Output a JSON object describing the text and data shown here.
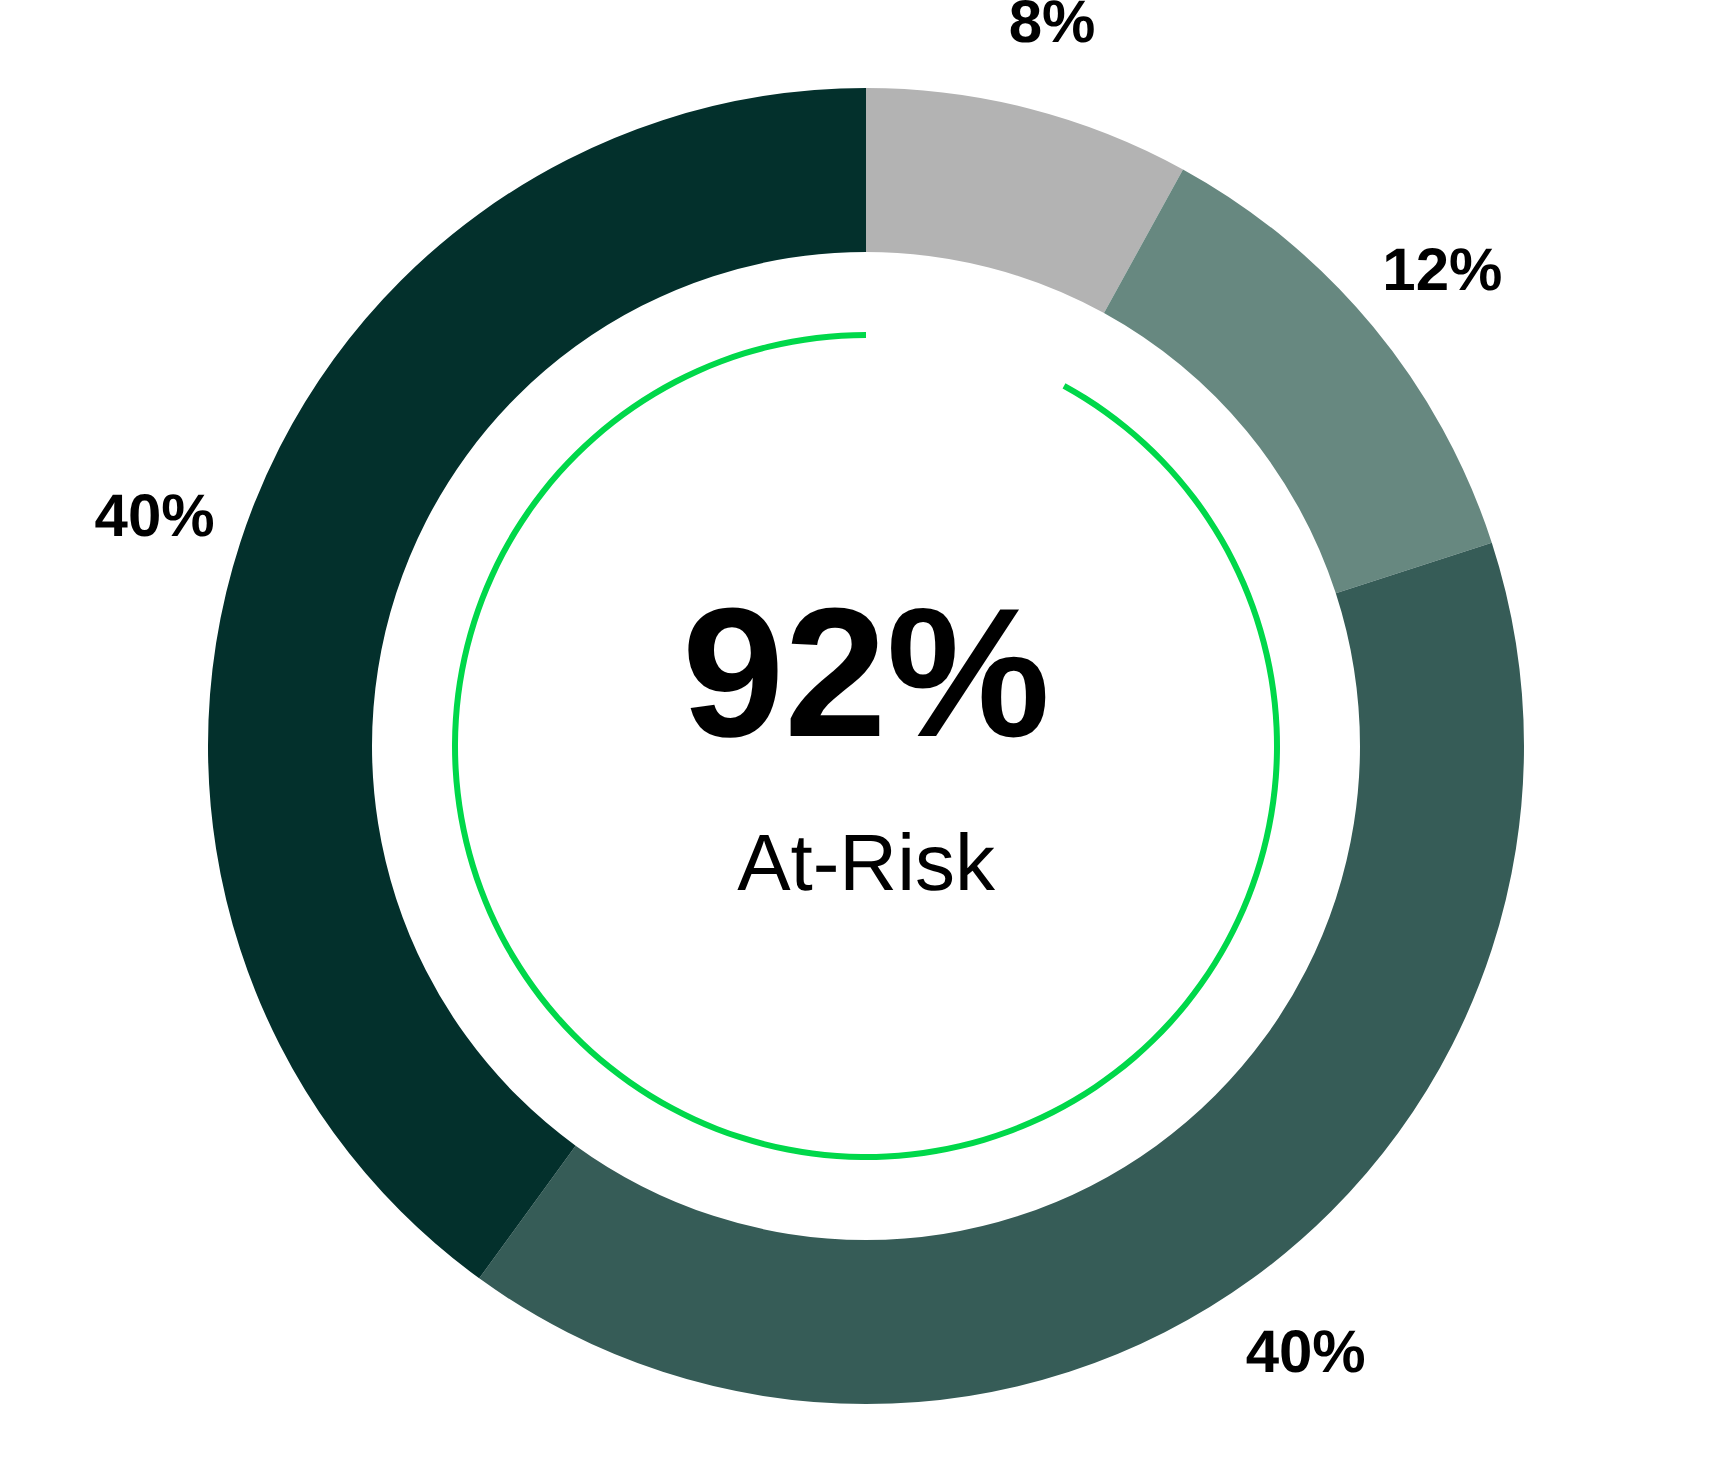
{
  "chart_data": {
    "type": "donut",
    "categories": [
      null,
      null,
      null,
      null
    ],
    "values": [
      8,
      12,
      40,
      40
    ],
    "colors": [
      "#b3b3b3",
      "#678880",
      "#365c57",
      "#03302c"
    ],
    "value_labels": [
      "8%",
      "12%",
      "40%",
      "40%"
    ],
    "annotations": [
      "92%",
      "At-Risk"
    ],
    "legend": false
  }
}
